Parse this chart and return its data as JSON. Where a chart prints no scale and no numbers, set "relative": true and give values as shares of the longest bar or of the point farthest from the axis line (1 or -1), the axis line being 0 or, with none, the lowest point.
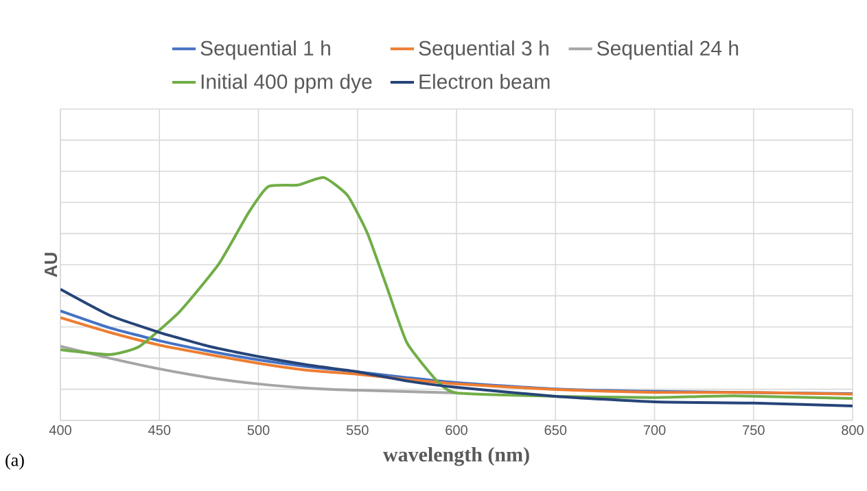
{
  "chart_data": {
    "type": "line",
    "relative": true,
    "xlabel": "wavelength (nm)",
    "ylabel": "AU",
    "annotations": [
      "(a)"
    ],
    "xlim": [
      400,
      800
    ],
    "xticks": [
      400,
      450,
      500,
      550,
      600,
      650,
      700,
      750,
      800
    ],
    "grid": true,
    "legend": "top",
    "line_style": "solid",
    "marker": "none",
    "series": [
      {
        "name": "Sequential 1 h",
        "color": "#4472c4",
        "x": [
          400,
          425,
          450,
          475,
          500,
          525,
          550,
          575,
          600,
          650,
          700,
          750,
          800
        ],
        "values": [
          0.451,
          0.381,
          0.328,
          0.285,
          0.249,
          0.221,
          0.2,
          0.176,
          0.155,
          0.129,
          0.119,
          null,
          0.11
        ]
      },
      {
        "name": "Sequential 3 h",
        "color": "#ed7d31",
        "x": [
          400,
          425,
          450,
          475,
          500,
          525,
          550,
          575,
          600,
          650,
          700,
          750,
          800
        ],
        "values": [
          0.423,
          0.362,
          0.31,
          0.271,
          0.235,
          0.206,
          0.19,
          0.169,
          0.15,
          0.127,
          0.115,
          0.115,
          0.108
        ]
      },
      {
        "name": "Sequential 24 h",
        "color": "#a5a5a5",
        "x": [
          400,
          425,
          450,
          475,
          500,
          525,
          550,
          600
        ],
        "values": [
          0.305,
          0.256,
          0.212,
          0.176,
          0.15,
          0.133,
          0.124,
          0.113
        ]
      },
      {
        "name": "Initial 400 ppm dye",
        "color": "#70ad47",
        "x": [
          400,
          425,
          440,
          460,
          480,
          495,
          505,
          520,
          533,
          545,
          555,
          565,
          575,
          590,
          600,
          650,
          700,
          740,
          800
        ],
        "values": [
          0.291,
          0.271,
          0.305,
          0.446,
          0.644,
          0.855,
          0.963,
          0.969,
          1,
          0.926,
          0.771,
          0.545,
          0.319,
          0.164,
          0.113,
          0.099,
          0.094,
          0.101,
          0.09
        ]
      },
      {
        "name": "Electron beam",
        "color": "#264478",
        "x": [
          400,
          425,
          450,
          475,
          500,
          525,
          550,
          575,
          600,
          650,
          700,
          750,
          800
        ],
        "values": [
          0.54,
          0.432,
          0.362,
          0.305,
          0.263,
          0.228,
          0.2,
          0.162,
          0.136,
          0.099,
          0.076,
          0.071,
          0.059
        ]
      }
    ]
  }
}
